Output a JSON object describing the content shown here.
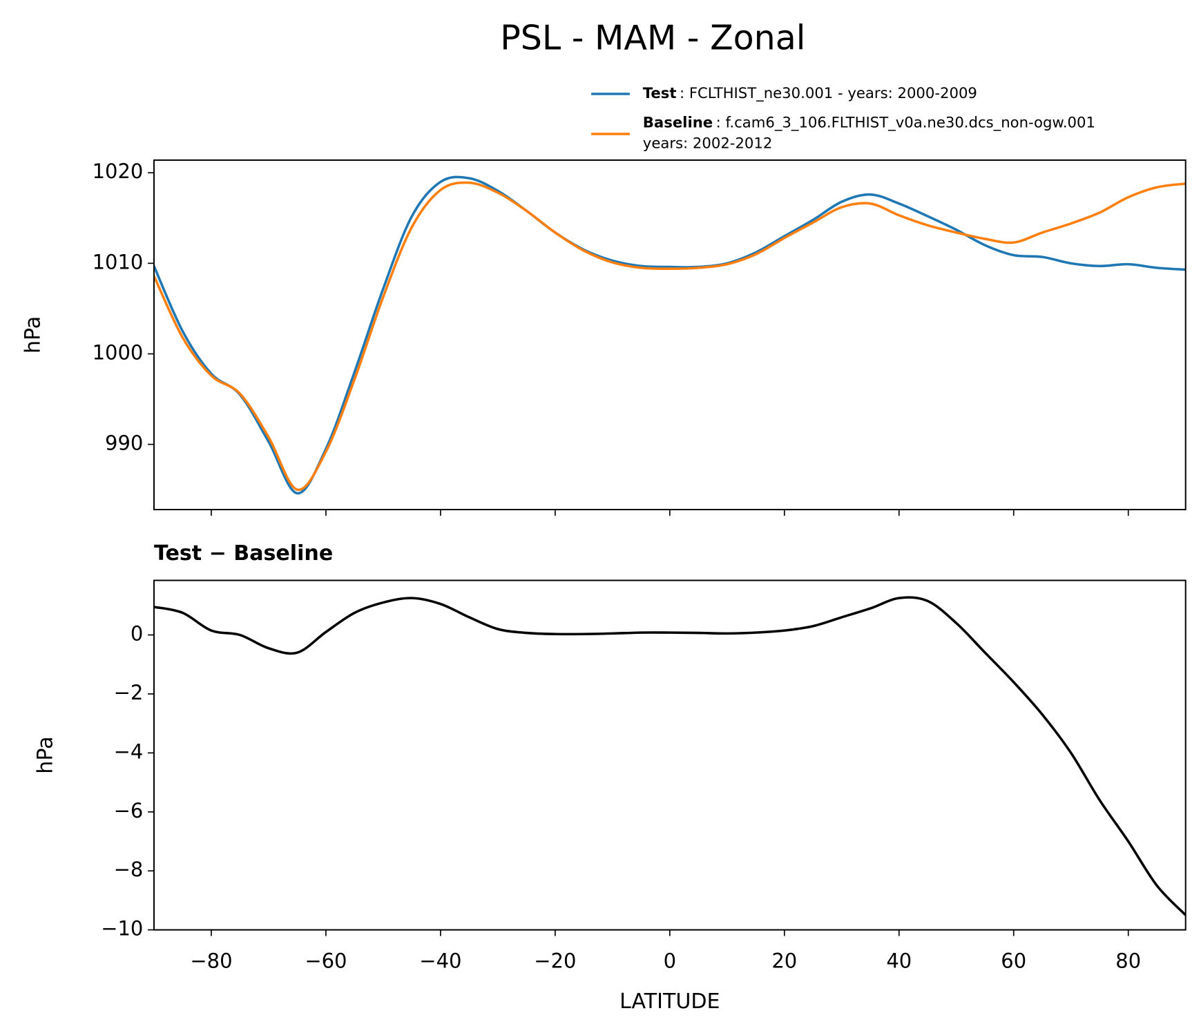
{
  "title": "PSL - MAM - Zonal",
  "chart_data": [
    {
      "type": "line",
      "ylabel": "hPa",
      "xlim": [
        -90,
        90
      ],
      "ylim": [
        982.8,
        1021.4
      ],
      "xticks": [
        -80,
        -60,
        -40,
        -20,
        0,
        20,
        40,
        60,
        80
      ],
      "yticks": [
        990,
        1000,
        1010,
        1020
      ],
      "x": [
        -90,
        -85,
        -80,
        -75,
        -70,
        -65,
        -60,
        -55,
        -50,
        -45,
        -40,
        -35,
        -30,
        -25,
        -20,
        -15,
        -10,
        -5,
        0,
        5,
        10,
        15,
        20,
        25,
        30,
        35,
        40,
        45,
        50,
        55,
        60,
        65,
        70,
        75,
        80,
        85,
        90
      ],
      "series": [
        {
          "name": "Test",
          "label_detail": ": FCLTHIST_ne30.001 - years: 2000-2009",
          "color": "#1f77b4",
          "values": [
            1009.7,
            1002.5,
            997.8,
            995.5,
            990.3,
            984.6,
            989.5,
            998.0,
            1007.2,
            1015.2,
            1019.0,
            1019.4,
            1018.0,
            1015.8,
            1013.4,
            1011.5,
            1010.3,
            1009.7,
            1009.6,
            1009.6,
            1010.0,
            1011.2,
            1013.0,
            1014.8,
            1016.8,
            1017.6,
            1016.6,
            1015.2,
            1013.7,
            1012.0,
            1010.9,
            1010.7,
            1010.0,
            1009.7,
            1009.9,
            1009.5,
            1009.3
          ]
        },
        {
          "name": "Baseline",
          "label_detail": ": f.cam6_3_106.FLTHIST_v0a.ne30.dcs_non-ogw.001",
          "label_detail_2": "years: 2002-2012",
          "color": "#ff7f0e",
          "values": [
            1008.6,
            1001.8,
            997.6,
            995.6,
            990.8,
            985.0,
            989.2,
            997.2,
            1006.3,
            1014.0,
            1018.1,
            1018.9,
            1017.8,
            1015.8,
            1013.4,
            1011.4,
            1010.1,
            1009.5,
            1009.4,
            1009.5,
            1009.9,
            1011.0,
            1012.8,
            1014.5,
            1016.2,
            1016.6,
            1015.3,
            1014.2,
            1013.4,
            1012.7,
            1012.3,
            1013.4,
            1014.4,
            1015.6,
            1017.3,
            1018.4,
            1018.8
          ]
        }
      ]
    },
    {
      "type": "line",
      "title": "Test − Baseline",
      "ylabel": "hPa",
      "xlabel": "LATITUDE",
      "color": "#000000",
      "xlim": [
        -90,
        90
      ],
      "ylim": [
        -10,
        1.85
      ],
      "xticks": [
        {
          "value": -80,
          "label": "−80"
        },
        {
          "value": -60,
          "label": "−60"
        },
        {
          "value": -40,
          "label": "−40"
        },
        {
          "value": -20,
          "label": "−20"
        },
        0,
        20,
        40,
        60,
        80
      ],
      "yticks": [
        {
          "value": -10,
          "label": "−10"
        },
        {
          "value": -8,
          "label": "−8"
        },
        {
          "value": -6,
          "label": "−6"
        },
        {
          "value": -4,
          "label": "−4"
        },
        {
          "value": -2,
          "label": "−2"
        },
        0
      ],
      "x": [
        -90,
        -85,
        -80,
        -75,
        -70,
        -65,
        -60,
        -55,
        -50,
        -45,
        -40,
        -35,
        -30,
        -25,
        -20,
        -15,
        -10,
        -5,
        0,
        5,
        10,
        15,
        20,
        25,
        30,
        35,
        40,
        45,
        50,
        55,
        60,
        65,
        70,
        75,
        80,
        85,
        90
      ],
      "values": [
        0.95,
        0.75,
        0.15,
        0.0,
        -0.45,
        -0.6,
        0.1,
        0.75,
        1.1,
        1.25,
        1.05,
        0.6,
        0.2,
        0.07,
        0.03,
        0.03,
        0.05,
        0.08,
        0.08,
        0.07,
        0.05,
        0.08,
        0.15,
        0.3,
        0.6,
        0.9,
        1.25,
        1.15,
        0.4,
        -0.6,
        -1.6,
        -2.7,
        -4.0,
        -5.6,
        -7.0,
        -8.5,
        -9.5
      ]
    }
  ]
}
